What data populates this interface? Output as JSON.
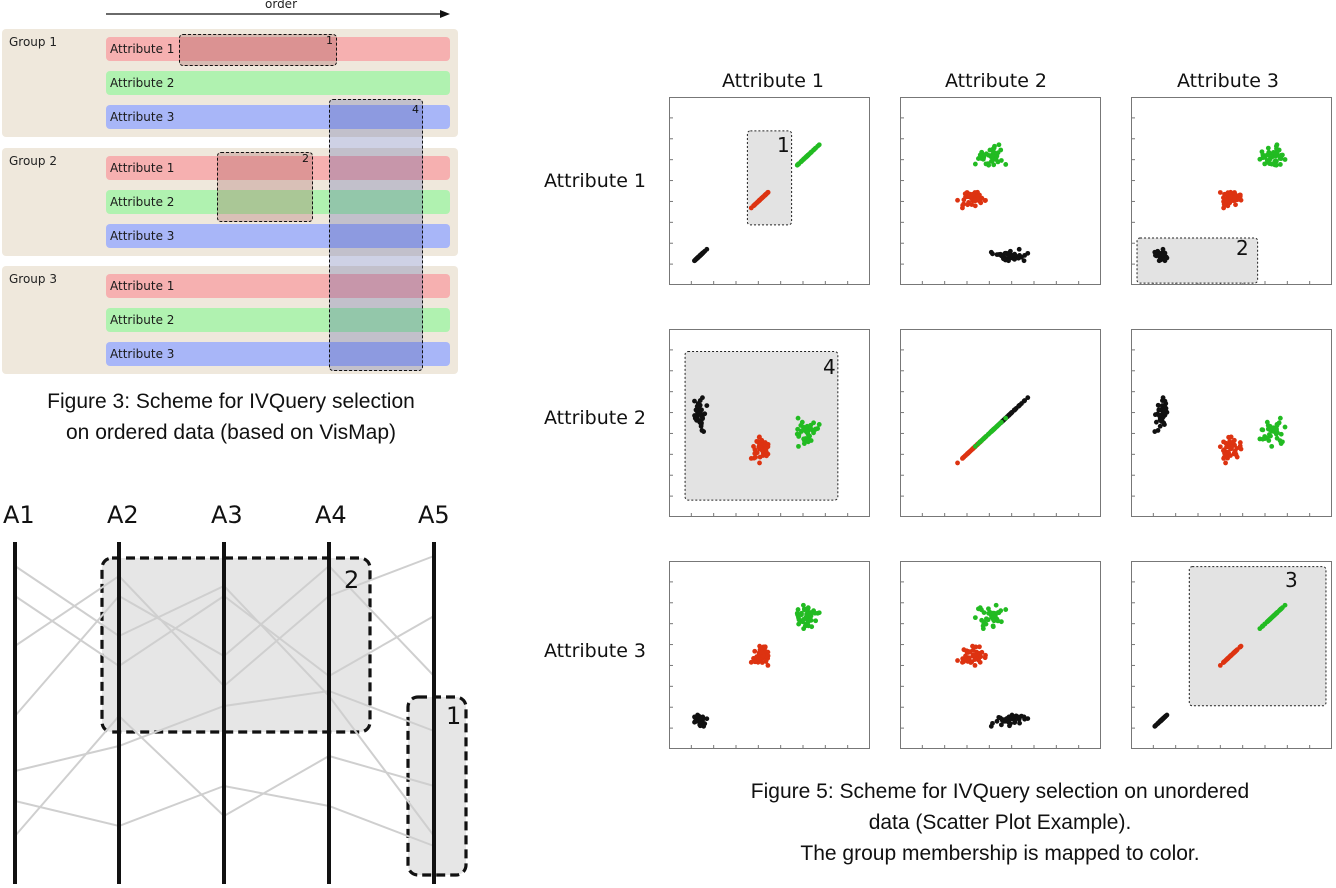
{
  "figure3": {
    "order_label": "order",
    "groups": [
      {
        "label": "Group 1",
        "attributes": [
          "Attribute 1",
          "Attribute 2",
          "Attribute 3"
        ]
      },
      {
        "label": "Group 2",
        "attributes": [
          "Attribute 1",
          "Attribute 2",
          "Attribute 3"
        ]
      },
      {
        "label": "Group 3",
        "attributes": [
          "Attribute 1",
          "Attribute 2",
          "Attribute 3"
        ]
      }
    ],
    "selections": [
      "1",
      "2",
      "4"
    ],
    "caption_line1": "Figure 3: Scheme for IVQuery selection",
    "caption_line2": "on ordered data (based on VisMap)"
  },
  "parallel": {
    "axes": [
      "A1",
      "A2",
      "A3",
      "A4",
      "A5"
    ],
    "selections": [
      "2",
      "1"
    ]
  },
  "figure5": {
    "columns": [
      "Attribute 1",
      "Attribute 2",
      "Attribute 3"
    ],
    "rows": [
      "Attribute 1",
      "Attribute 2",
      "Attribute 3"
    ],
    "selections": [
      "1",
      "2",
      "4",
      "3"
    ],
    "colors": {
      "group1": "#111111",
      "group2": "#dd3311",
      "group3": "#22bb22"
    },
    "caption_line1": "Figure 5:  Scheme for IVQuery selection on unordered",
    "caption_line2": "data (Scatter Plot Example).",
    "caption_line3": "The group membership is mapped to color."
  }
}
